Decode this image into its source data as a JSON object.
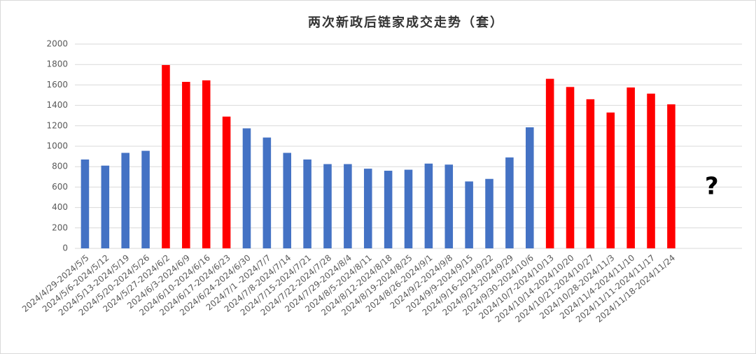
{
  "chart_data": {
    "type": "bar",
    "title": "两次新政后链家成交走势（套）",
    "categories": [
      "2024/4/29-2024/5/5",
      "2024/5/6-2024/5/12",
      "2024/5/13-2024/5/19",
      "2024/5/20-2024/5/26",
      "2024/5/27-2024/6/2",
      "2024/6/3-2024/6/9",
      "2024/6/10-2024/6/16",
      "2024/6/17-2024/6/23",
      "2024/6/24-2024/6/30",
      "2024/7/1 -2024/7/7",
      "2024/7/8-2024/7/14",
      "2024/7/15-2024/7/21",
      "2024/7/22-2024/7/28",
      "2024/7/29-2024/8/4",
      "2024/8/5-2024/8/11",
      "2024/8/12-2024/8/18",
      "2024/8/19-2024/8/25",
      "2024/8/26-2024/9/1",
      "2024/9/2-2024/9/8",
      "2024/9/9-2024/9/15",
      "2024/9/16-2024/9/22",
      "2024/9/23-2024/9/29",
      "2024/9/30-2024/10/6",
      "2024/10/7-2024/10/13",
      "2024/10/14-2024/10/20",
      "2024/10/21-2024/10/27",
      "2024/10/28-2024/11/3",
      "2024/11/4-2024/11/10",
      "2024/11/11-2024/11/17",
      "2024/11/18-2024/11/24",
      null,
      null,
      null
    ],
    "values": [
      870,
      810,
      935,
      955,
      1795,
      1630,
      1645,
      1290,
      1175,
      1085,
      935,
      870,
      825,
      825,
      780,
      760,
      770,
      830,
      820,
      655,
      680,
      890,
      1185,
      1660,
      1580,
      1460,
      1330,
      1575,
      1515,
      1410,
      null,
      null,
      null
    ],
    "colors": [
      "#4472c4",
      "#4472c4",
      "#4472c4",
      "#4472c4",
      "#ff0000",
      "#ff0000",
      "#ff0000",
      "#ff0000",
      "#4472c4",
      "#4472c4",
      "#4472c4",
      "#4472c4",
      "#4472c4",
      "#4472c4",
      "#4472c4",
      "#4472c4",
      "#4472c4",
      "#4472c4",
      "#4472c4",
      "#4472c4",
      "#4472c4",
      "#4472c4",
      "#4472c4",
      "#ff0000",
      "#ff0000",
      "#ff0000",
      "#ff0000",
      "#ff0000",
      "#ff0000",
      "#ff0000",
      null,
      null,
      null
    ],
    "annotation": "?",
    "ylim": [
      0,
      2000
    ],
    "yticks": [
      0,
      200,
      400,
      600,
      800,
      1000,
      1200,
      1400,
      1600,
      1800,
      2000
    ],
    "grid": true
  }
}
